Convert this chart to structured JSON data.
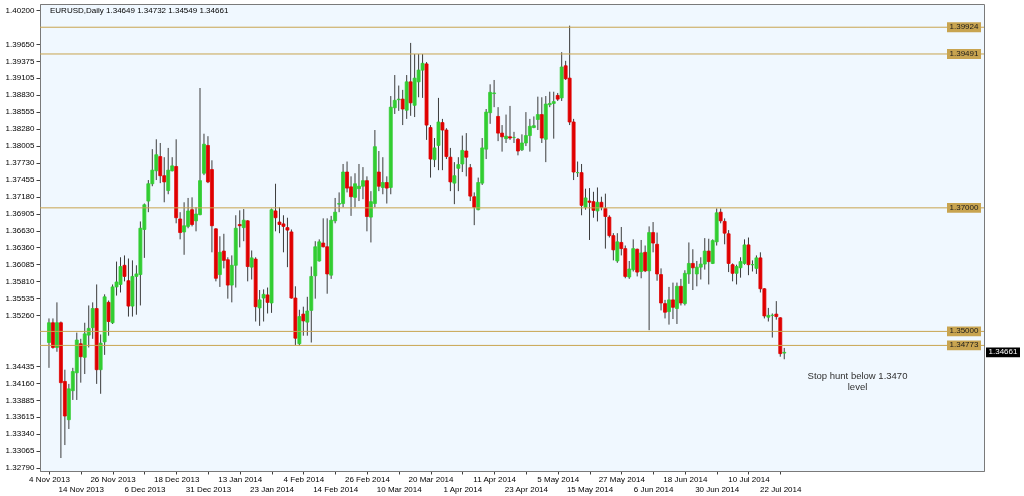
{
  "chart_data": {
    "type": "candlestick",
    "title": "EURUSD,Daily 1.34649 1.34732 1.34549 1.34661",
    "categories": [
      "4 Nov 2013",
      null,
      null,
      null,
      null,
      null,
      null,
      null,
      "14 Nov 2013",
      null,
      null,
      null,
      null,
      null,
      null,
      null,
      "26 Nov 2013",
      null,
      null,
      null,
      null,
      null,
      null,
      null,
      "6 Dec 2013",
      null,
      null,
      null,
      null,
      null,
      null,
      null,
      "18 Dec 2013",
      null,
      null,
      null,
      null,
      null,
      null,
      null,
      "31 Dec 2013",
      null,
      null,
      null,
      null,
      null,
      null,
      null,
      "13 Jan 2014",
      null,
      null,
      null,
      null,
      null,
      null,
      null,
      "23 Jan 2014",
      null,
      null,
      null,
      null,
      null,
      null,
      null,
      "4 Feb 2014",
      null,
      null,
      null,
      null,
      null,
      null,
      null,
      "14 Feb 2014",
      null,
      null,
      null,
      null,
      null,
      null,
      null,
      "26 Feb 2014",
      null,
      null,
      null,
      null,
      null,
      null,
      null,
      "10 Mar 2014",
      null,
      null,
      null,
      null,
      null,
      null,
      null,
      "20 Mar 2014",
      null,
      null,
      null,
      null,
      null,
      null,
      null,
      "1 Apr 2014",
      null,
      null,
      null,
      null,
      null,
      null,
      null,
      "11 Apr 2014",
      null,
      null,
      null,
      null,
      null,
      null,
      null,
      "23 Apr 2014",
      null,
      null,
      null,
      null,
      null,
      null,
      null,
      "5 May 2014",
      null,
      null,
      null,
      null,
      null,
      null,
      null,
      "15 May 2014",
      null,
      null,
      null,
      null,
      null,
      null,
      null,
      "27 May 2014",
      null,
      null,
      null,
      null,
      null,
      null,
      null,
      "6 Jun 2014",
      null,
      null,
      null,
      null,
      null,
      null,
      null,
      "18 Jun 2014",
      null,
      null,
      null,
      null,
      null,
      null,
      null,
      "30 Jun 2014",
      null,
      null,
      null,
      null,
      null,
      null,
      null,
      "10 Jul 2014",
      null,
      null,
      null,
      null,
      null,
      null,
      null,
      "22 Jul 2014",
      null
    ],
    "ohlc": [
      [
        1.3482,
        1.3521,
        1.3441,
        1.3514
      ],
      [
        1.3514,
        1.3521,
        1.3472,
        1.3474
      ],
      [
        1.3474,
        1.3547,
        1.3467,
        1.3514
      ],
      [
        1.3514,
        1.3516,
        1.3295,
        1.3417
      ],
      [
        1.3419,
        1.3438,
        1.3316,
        1.3363
      ],
      [
        1.3357,
        1.3415,
        1.3342,
        1.3407
      ],
      [
        1.3404,
        1.3441,
        1.3389,
        1.3435
      ],
      [
        1.3433,
        1.3498,
        1.3389,
        1.3486
      ],
      [
        1.348,
        1.3488,
        1.3417,
        1.3459
      ],
      [
        1.3458,
        1.3514,
        1.3431,
        1.3496
      ],
      [
        1.3494,
        1.3542,
        1.3474,
        1.3505
      ],
      [
        1.3506,
        1.3547,
        1.3488,
        1.3537
      ],
      [
        1.3537,
        1.3576,
        1.3415,
        1.3438
      ],
      [
        1.3438,
        1.3495,
        1.3399,
        1.3481
      ],
      [
        1.3483,
        1.356,
        1.3462,
        1.3556
      ],
      [
        1.3547,
        1.355,
        1.3493,
        1.3516
      ],
      [
        1.3514,
        1.3576,
        1.3512,
        1.3572
      ],
      [
        1.3572,
        1.3613,
        1.3558,
        1.358
      ],
      [
        1.3576,
        1.362,
        1.3563,
        1.3605
      ],
      [
        1.3607,
        1.3623,
        1.3581,
        1.3589
      ],
      [
        1.3582,
        1.3618,
        1.3524,
        1.3541
      ],
      [
        1.3541,
        1.3615,
        1.3524,
        1.3589
      ],
      [
        1.3589,
        1.3607,
        1.3527,
        1.3593
      ],
      [
        1.3592,
        1.3678,
        1.3542,
        1.3667
      ],
      [
        1.3665,
        1.3707,
        1.3619,
        1.3705
      ],
      [
        1.3711,
        1.3745,
        1.3693,
        1.3739
      ],
      [
        1.3739,
        1.3795,
        1.3735,
        1.3761
      ],
      [
        1.376,
        1.3811,
        1.3745,
        1.3786
      ],
      [
        1.3783,
        1.3805,
        1.374,
        1.3752
      ],
      [
        1.3752,
        1.3782,
        1.3709,
        1.3742
      ],
      [
        1.3728,
        1.3797,
        1.3722,
        1.3761
      ],
      [
        1.376,
        1.3782,
        1.3759,
        1.3768
      ],
      [
        1.3767,
        1.3811,
        1.3675,
        1.3684
      ],
      [
        1.3682,
        1.3693,
        1.3649,
        1.366
      ],
      [
        1.3661,
        1.3709,
        1.3624,
        1.3671
      ],
      [
        1.367,
        1.3716,
        1.3667,
        1.3695
      ],
      [
        1.3697,
        1.3717,
        1.367,
        1.3673
      ],
      [
        1.3679,
        1.3701,
        1.3662,
        1.369
      ],
      [
        1.3689,
        1.3894,
        1.3688,
        1.3744
      ],
      [
        1.3756,
        1.382,
        1.3753,
        1.3803
      ],
      [
        1.3801,
        1.3816,
        1.374,
        1.3742
      ],
      [
        1.3762,
        1.3777,
        1.3628,
        1.3671
      ],
      [
        1.3666,
        1.3667,
        1.3581,
        1.3586
      ],
      [
        1.3592,
        1.3654,
        1.3572,
        1.3628
      ],
      [
        1.363,
        1.3658,
        1.3602,
        1.3615
      ],
      [
        1.3616,
        1.362,
        1.3553,
        1.3575
      ],
      [
        1.3575,
        1.3623,
        1.3547,
        1.3607
      ],
      [
        1.3607,
        1.3688,
        1.3571,
        1.3667
      ],
      [
        1.3673,
        1.3696,
        1.3636,
        1.3671
      ],
      [
        1.3668,
        1.3698,
        1.3646,
        1.368
      ],
      [
        1.3679,
        1.368,
        1.3581,
        1.3605
      ],
      [
        1.3604,
        1.3631,
        1.3584,
        1.3619
      ],
      [
        1.3617,
        1.362,
        1.3516,
        1.354
      ],
      [
        1.3538,
        1.3567,
        1.3509,
        1.3551
      ],
      [
        1.3554,
        1.3568,
        1.3516,
        1.356
      ],
      [
        1.3559,
        1.3571,
        1.3529,
        1.3547
      ],
      [
        1.3546,
        1.3699,
        1.353,
        1.3697
      ],
      [
        1.3695,
        1.3739,
        1.3662,
        1.3684
      ],
      [
        1.3677,
        1.3701,
        1.3659,
        1.3673
      ],
      [
        1.3674,
        1.3688,
        1.3628,
        1.367
      ],
      [
        1.3668,
        1.3684,
        1.3604,
        1.3664
      ],
      [
        1.3661,
        1.3665,
        1.3553,
        1.3554
      ],
      [
        1.3554,
        1.3573,
        1.3478,
        1.3489
      ],
      [
        1.348,
        1.3535,
        1.3477,
        1.3524
      ],
      [
        1.3528,
        1.354,
        1.3493,
        1.3517
      ],
      [
        1.3515,
        1.3556,
        1.3493,
        1.3533
      ],
      [
        1.3534,
        1.3605,
        1.3482,
        1.3589
      ],
      [
        1.359,
        1.3646,
        1.3553,
        1.3637
      ],
      [
        1.3614,
        1.3649,
        1.3613,
        1.3645
      ],
      [
        1.3643,
        1.3683,
        1.3636,
        1.3637
      ],
      [
        1.3637,
        1.3683,
        1.3561,
        1.3593
      ],
      [
        1.3591,
        1.3687,
        1.3585,
        1.368
      ],
      [
        1.3679,
        1.3716,
        1.3675,
        1.3693
      ],
      [
        1.3706,
        1.3725,
        1.3693,
        1.3707
      ],
      [
        1.3707,
        1.3771,
        1.3701,
        1.3758
      ],
      [
        1.3758,
        1.3775,
        1.3725,
        1.3732
      ],
      [
        1.3734,
        1.3751,
        1.3687,
        1.3718
      ],
      [
        1.3717,
        1.3756,
        1.3701,
        1.3739
      ],
      [
        1.3731,
        1.3771,
        1.3711,
        1.3735
      ],
      [
        1.3735,
        1.3766,
        1.3714,
        1.3744
      ],
      [
        1.3744,
        1.3751,
        1.3662,
        1.3686
      ],
      [
        1.3685,
        1.3727,
        1.3644,
        1.371
      ],
      [
        1.3707,
        1.3826,
        1.3701,
        1.3799
      ],
      [
        1.3758,
        1.3792,
        1.3727,
        1.3735
      ],
      [
        1.3733,
        1.3782,
        1.3722,
        1.3741
      ],
      [
        1.3741,
        1.3751,
        1.3707,
        1.3732
      ],
      [
        1.3733,
        1.3881,
        1.3722,
        1.3863
      ],
      [
        1.3862,
        1.3915,
        1.3852,
        1.3874
      ],
      [
        1.3875,
        1.3898,
        1.3857,
        1.3876
      ],
      [
        1.3876,
        1.3891,
        1.3834,
        1.386
      ],
      [
        1.3858,
        1.3915,
        1.3844,
        1.3904
      ],
      [
        1.3904,
        1.3967,
        1.3849,
        1.387
      ],
      [
        1.3866,
        1.3949,
        1.3847,
        1.391
      ],
      [
        1.3904,
        1.3949,
        1.3879,
        1.3923
      ],
      [
        1.3923,
        1.3949,
        1.3878,
        1.3934
      ],
      [
        1.3933,
        1.3936,
        1.381,
        1.3834
      ],
      [
        1.383,
        1.3834,
        1.3749,
        1.3779
      ],
      [
        1.3778,
        1.3813,
        1.3766,
        1.3797
      ],
      [
        1.3801,
        1.3878,
        1.3761,
        1.3839
      ],
      [
        1.3838,
        1.3844,
        1.3761,
        1.3826
      ],
      [
        1.3826,
        1.3829,
        1.3779,
        1.3783
      ],
      [
        1.3782,
        1.3797,
        1.3727,
        1.3742
      ],
      [
        1.374,
        1.3774,
        1.3706,
        1.3752
      ],
      [
        1.3764,
        1.3782,
        1.3727,
        1.377
      ],
      [
        1.3771,
        1.3817,
        1.3758,
        1.3793
      ],
      [
        1.3792,
        1.3821,
        1.3751,
        1.3782
      ],
      [
        1.3765,
        1.3771,
        1.3711,
        1.3719
      ],
      [
        1.3718,
        1.3725,
        1.3672,
        1.3701
      ],
      [
        1.3697,
        1.3749,
        1.3696,
        1.3741
      ],
      [
        1.374,
        1.3813,
        1.3737,
        1.3797
      ],
      [
        1.3795,
        1.386,
        1.3779,
        1.3855
      ],
      [
        1.3854,
        1.39,
        1.3836,
        1.3887
      ],
      [
        1.3885,
        1.3907,
        1.3863,
        1.3886
      ],
      [
        1.3848,
        1.3863,
        1.3808,
        1.3821
      ],
      [
        1.3821,
        1.3834,
        1.3791,
        1.3815
      ],
      [
        1.3812,
        1.3851,
        1.3805,
        1.3816
      ],
      [
        1.3815,
        1.3865,
        1.381,
        1.3813
      ],
      [
        1.3814,
        1.3823,
        1.3805,
        1.3814
      ],
      [
        1.3811,
        1.3813,
        1.3785,
        1.3792
      ],
      [
        1.3794,
        1.3819,
        1.3792,
        1.3805
      ],
      [
        1.3805,
        1.3855,
        1.38,
        1.3817
      ],
      [
        1.3817,
        1.3844,
        1.3791,
        1.3832
      ],
      [
        1.383,
        1.3848,
        1.3829,
        1.3833
      ],
      [
        1.3843,
        1.388,
        1.3826,
        1.3851
      ],
      [
        1.3851,
        1.3879,
        1.3805,
        1.3813
      ],
      [
        1.3811,
        1.3881,
        1.3774,
        1.3868
      ],
      [
        1.3867,
        1.3888,
        1.3863,
        1.3869
      ],
      [
        1.3869,
        1.3888,
        1.3812,
        1.3872
      ],
      [
        1.3882,
        1.3886,
        1.3873,
        1.3876
      ],
      [
        1.3878,
        1.3952,
        1.3873,
        1.3928
      ],
      [
        1.393,
        1.3938,
        1.3907,
        1.3909
      ],
      [
        1.391,
        1.3995,
        1.3834,
        1.3839
      ],
      [
        1.3839,
        1.3844,
        1.3745,
        1.3758
      ],
      [
        1.3757,
        1.3775,
        1.375,
        1.3757
      ],
      [
        1.3757,
        1.3771,
        1.3688,
        1.3704
      ],
      [
        1.3701,
        1.3731,
        1.3697,
        1.3716
      ],
      [
        1.3711,
        1.3732,
        1.3648,
        1.3709
      ],
      [
        1.371,
        1.3726,
        1.3684,
        1.3696
      ],
      [
        1.3695,
        1.3733,
        1.3678,
        1.3709
      ],
      [
        1.3709,
        1.3718,
        1.3696,
        1.3701
      ],
      [
        1.3699,
        1.3723,
        1.3634,
        1.3686
      ],
      [
        1.3685,
        1.3688,
        1.3652,
        1.3655
      ],
      [
        1.3655,
        1.3659,
        1.3615,
        1.3632
      ],
      [
        1.3614,
        1.3659,
        1.3611,
        1.3645
      ],
      [
        1.3644,
        1.3669,
        1.3623,
        1.3634
      ],
      [
        1.3634,
        1.3639,
        1.3586,
        1.3589
      ],
      [
        1.3588,
        1.3614,
        1.3585,
        1.3601
      ],
      [
        1.36,
        1.3649,
        1.3597,
        1.3634
      ],
      [
        1.3633,
        1.3634,
        1.3589,
        1.3596
      ],
      [
        1.3597,
        1.3648,
        1.3586,
        1.3627
      ],
      [
        1.3628,
        1.3639,
        1.3596,
        1.3598
      ],
      [
        1.3598,
        1.367,
        1.3502,
        1.366
      ],
      [
        1.366,
        1.3677,
        1.3628,
        1.3643
      ],
      [
        1.3641,
        1.366,
        1.3582,
        1.3593
      ],
      [
        1.3592,
        1.3602,
        1.3534,
        1.3546
      ],
      [
        1.3545,
        1.3551,
        1.3521,
        1.3531
      ],
      [
        1.3532,
        1.3572,
        1.3511,
        1.3551
      ],
      [
        1.3551,
        1.3579,
        1.352,
        1.3539
      ],
      [
        1.3537,
        1.3579,
        1.3512,
        1.3573
      ],
      [
        1.3573,
        1.3585,
        1.3542,
        1.3546
      ],
      [
        1.3545,
        1.3599,
        1.3542,
        1.3594
      ],
      [
        1.3593,
        1.3644,
        1.3577,
        1.361
      ],
      [
        1.361,
        1.3633,
        1.3567,
        1.3603
      ],
      [
        1.3593,
        1.3614,
        1.3573,
        1.3604
      ],
      [
        1.3604,
        1.362,
        1.3584,
        1.3609
      ],
      [
        1.3609,
        1.3651,
        1.36,
        1.363
      ],
      [
        1.363,
        1.365,
        1.3576,
        1.3613
      ],
      [
        1.361,
        1.3649,
        1.3609,
        1.3647
      ],
      [
        1.3645,
        1.3699,
        1.3639,
        1.3692
      ],
      [
        1.3693,
        1.3699,
        1.3675,
        1.3679
      ],
      [
        1.3678,
        1.3683,
        1.3641,
        1.3659
      ],
      [
        1.3658,
        1.3664,
        1.3596,
        1.361
      ],
      [
        1.3608,
        1.361,
        1.3581,
        1.3594
      ],
      [
        1.3594,
        1.3608,
        1.3576,
        1.3605
      ],
      [
        1.3603,
        1.362,
        1.3587,
        1.3613
      ],
      [
        1.361,
        1.3649,
        1.3608,
        1.364
      ],
      [
        1.364,
        1.3652,
        1.3591,
        1.3608
      ],
      [
        1.3608,
        1.3615,
        1.3597,
        1.3608
      ],
      [
        1.3602,
        1.3623,
        1.3593,
        1.3619
      ],
      [
        1.3619,
        1.3628,
        1.3563,
        1.3569
      ],
      [
        1.3569,
        1.357,
        1.3521,
        1.3525
      ],
      [
        1.3523,
        1.3538,
        1.3516,
        1.3526
      ],
      [
        1.3526,
        1.3529,
        1.349,
        1.3526
      ],
      [
        1.3528,
        1.3549,
        1.3519,
        1.3524
      ],
      [
        1.3522,
        1.3523,
        1.3459,
        1.3464
      ],
      [
        1.34649,
        1.34732,
        1.34549,
        1.34661
      ]
    ],
    "colors": [
      "#32cd32",
      "#e00000",
      "#32cd32",
      "#e00000",
      "#e00000",
      "#32cd32",
      "#32cd32",
      "#32cd32",
      "#e00000",
      "#32cd32",
      "#32cd32",
      "#32cd32",
      "#e00000",
      "#32cd32",
      "#32cd32",
      "#e00000",
      "#32cd32",
      "#32cd32",
      "#32cd32",
      "#e00000",
      "#e00000",
      "#32cd32",
      "#32cd32",
      "#32cd32",
      "#32cd32",
      "#32cd32",
      "#32cd32",
      "#32cd32",
      "#e00000",
      "#e00000",
      "#32cd32",
      "#32cd32",
      "#e00000",
      "#e00000",
      "#32cd32",
      "#32cd32",
      "#e00000",
      "#32cd32",
      "#32cd32",
      "#32cd32",
      "#e00000",
      "#e00000",
      "#e00000",
      "#32cd32",
      "#e00000",
      "#e00000",
      "#32cd32",
      "#32cd32",
      "#e00000",
      "#32cd32",
      "#e00000",
      "#32cd32",
      "#e00000",
      "#32cd32",
      "#32cd32",
      "#e00000",
      "#32cd32",
      "#e00000",
      "#e00000",
      "#e00000",
      "#e00000",
      "#e00000",
      "#e00000",
      "#32cd32",
      "#e00000",
      "#32cd32",
      "#32cd32",
      "#32cd32",
      "#32cd32",
      "#e00000",
      "#e00000",
      "#32cd32",
      "#32cd32",
      "#32cd32",
      "#32cd32",
      "#e00000",
      "#e00000",
      "#32cd32",
      "#32cd32",
      "#32cd32",
      "#e00000",
      "#32cd32",
      "#32cd32",
      "#e00000",
      "#32cd32",
      "#e00000",
      "#32cd32",
      "#32cd32",
      "#32cd32",
      "#e00000",
      "#32cd32",
      "#e00000",
      "#32cd32",
      "#32cd32",
      "#32cd32",
      "#e00000",
      "#e00000",
      "#32cd32",
      "#32cd32",
      "#e00000",
      "#e00000",
      "#e00000",
      "#32cd32",
      "#32cd32",
      "#32cd32",
      "#e00000",
      "#e00000",
      "#e00000",
      "#32cd32",
      "#32cd32",
      "#32cd32",
      "#32cd32",
      "#32cd32",
      "#e00000",
      "#e00000",
      "#32cd32",
      "#e00000",
      "#32cd32",
      "#e00000",
      "#32cd32",
      "#32cd32",
      "#32cd32",
      "#32cd32",
      "#32cd32",
      "#e00000",
      "#32cd32",
      "#32cd32",
      "#32cd32",
      "#e00000",
      "#32cd32",
      "#e00000",
      "#e00000",
      "#e00000",
      "#32cd32",
      "#e00000",
      "#32cd32",
      "#e00000",
      "#e00000",
      "#32cd32",
      "#e00000",
      "#e00000",
      "#e00000",
      "#e00000",
      "#32cd32",
      "#e00000",
      "#e00000",
      "#32cd32",
      "#32cd32",
      "#e00000",
      "#32cd32",
      "#e00000",
      "#32cd32",
      "#e00000",
      "#e00000",
      "#e00000",
      "#e00000",
      "#32cd32",
      "#e00000",
      "#32cd32",
      "#e00000",
      "#32cd32",
      "#32cd32",
      "#e00000",
      "#32cd32",
      "#32cd32",
      "#32cd32",
      "#e00000",
      "#32cd32",
      "#32cd32",
      "#e00000",
      "#e00000",
      "#e00000",
      "#e00000",
      "#32cd32",
      "#32cd32",
      "#32cd32",
      "#e00000",
      "#32cd32",
      "#32cd32",
      "#e00000",
      "#e00000",
      "#32cd32",
      "#32cd32",
      "#e00000",
      "#e00000",
      "#32cd32"
    ],
    "ylim": [
      1.3274,
      1.403
    ],
    "yticks": [
      {
        "value": 1.402,
        "label": "1.40200"
      },
      {
        "value": 1.3965,
        "label": "1.39650"
      },
      {
        "value": 1.39375,
        "label": "1.39375"
      },
      {
        "value": 1.39105,
        "label": "1.39105"
      },
      {
        "value": 1.3883,
        "label": "1.38830"
      },
      {
        "value": 1.38555,
        "label": "1.38555"
      },
      {
        "value": 1.3828,
        "label": "1.38280"
      },
      {
        "value": 1.38005,
        "label": "1.38005"
      },
      {
        "value": 1.3773,
        "label": "1.37730"
      },
      {
        "value": 1.37455,
        "label": "1.37455"
      },
      {
        "value": 1.3718,
        "label": "1.37180"
      },
      {
        "value": 1.36905,
        "label": "1.36905"
      },
      {
        "value": 1.3663,
        "label": "1.36630"
      },
      {
        "value": 1.3636,
        "label": "1.36360"
      },
      {
        "value": 1.36085,
        "label": "1.36085"
      },
      {
        "value": 1.3581,
        "label": "1.35810"
      },
      {
        "value": 1.35535,
        "label": "1.35535"
      },
      {
        "value": 1.3526,
        "label": "1.35260"
      },
      {
        "value": 1.34435,
        "label": "1.34435"
      },
      {
        "value": 1.3416,
        "label": "1.34160"
      },
      {
        "value": 1.33885,
        "label": "1.33885"
      },
      {
        "value": 1.33615,
        "label": "1.33615"
      },
      {
        "value": 1.3334,
        "label": "1.33340"
      },
      {
        "value": 1.33065,
        "label": "1.33065"
      },
      {
        "value": 1.3279,
        "label": "1.32790"
      }
    ],
    "ref_lines": [
      {
        "axis": "y",
        "value": 1.39924,
        "label": "1.39924",
        "color": "#c8a450"
      },
      {
        "axis": "y",
        "value": 1.39491,
        "label": "1.39491",
        "color": "#c8a450"
      },
      {
        "axis": "y",
        "value": 1.37,
        "label": "1.37000",
        "color": "#c8a450"
      },
      {
        "axis": "y",
        "value": 1.35,
        "label": "1.35000",
        "color": "#c8a450"
      },
      {
        "axis": "y",
        "value": 1.34773,
        "label": "1.34773",
        "color": "#c8a450"
      }
    ],
    "annotations": [
      "Stop hunt below 1.3470 level",
      "1.34661"
    ]
  }
}
